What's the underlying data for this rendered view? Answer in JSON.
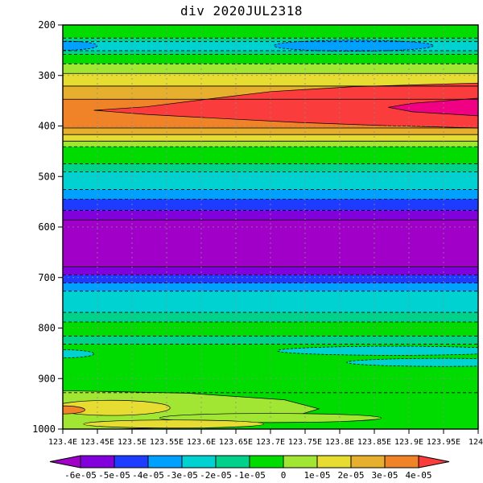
{
  "palette": {
    "purple": "#a000c8",
    "violet": "#8200dc",
    "darkblue": "#1e3cff",
    "blue": "#00a0ff",
    "cyan": "#00d2d2",
    "aqua": "#00d28c",
    "green": "#00dc00",
    "ygreen": "#a0e632",
    "yellow": "#e6dc32",
    "dyellow": "#e6af2d",
    "orange": "#f08228",
    "red": "#fa3c3c",
    "magenta": "#f00082"
  },
  "chart_data": {
    "type": "heatmap",
    "title": "div 2020JUL2318",
    "x_axis": {
      "range": [
        123.4,
        124.0
      ],
      "tick_labels": [
        "123.4E",
        "123.45E",
        "123.5E",
        "123.55E",
        "123.6E",
        "123.65E",
        "123.7E",
        "123.75E",
        "123.8E",
        "123.85E",
        "123.9E",
        "123.95E",
        "124E"
      ]
    },
    "y_axis": {
      "range": [
        200,
        1000
      ],
      "inverted": true,
      "tick_labels": [
        "200",
        "300",
        "400",
        "500",
        "600",
        "700",
        "800",
        "900",
        "1000"
      ]
    },
    "colorbar": {
      "labels": [
        "-6e-05",
        "-5e-05",
        "-4e-05",
        "-3e-05",
        "-2e-05",
        "-1e-05",
        "0",
        "1e-05",
        "2e-05",
        "3e-05",
        "4e-05"
      ],
      "colors": [
        "purple",
        "violet",
        "darkblue",
        "blue",
        "cyan",
        "aqua",
        "green",
        "ygreen",
        "yellow",
        "dyellow",
        "orange",
        "red"
      ]
    },
    "bands": [
      {
        "p0": 200,
        "p1": 226,
        "color": "green"
      },
      {
        "p0": 226,
        "p1": 233,
        "color": "aqua"
      },
      {
        "p0": 233,
        "p1": 251,
        "color": "cyan"
      },
      {
        "p0": 251,
        "p1": 258,
        "color": "aqua"
      },
      {
        "p0": 258,
        "p1": 277,
        "color": "green"
      },
      {
        "p0": 277,
        "p1": 296,
        "color": "ygreen"
      },
      {
        "p0": 296,
        "p1": 321,
        "color": "yellow"
      },
      {
        "p0": 321,
        "p1": 347,
        "color": "dyellow"
      },
      {
        "p0": 347,
        "p1": 404,
        "color": "orange"
      },
      {
        "p0": 404,
        "p1": 417,
        "color": "dyellow"
      },
      {
        "p0": 417,
        "p1": 430,
        "color": "yellow"
      },
      {
        "p0": 430,
        "p1": 441,
        "color": "ygreen"
      },
      {
        "p0": 441,
        "p1": 475,
        "color": "green"
      },
      {
        "p0": 475,
        "p1": 491,
        "color": "aqua"
      },
      {
        "p0": 491,
        "p1": 526,
        "color": "cyan"
      },
      {
        "p0": 526,
        "p1": 545,
        "color": "blue"
      },
      {
        "p0": 545,
        "p1": 567,
        "color": "darkblue"
      },
      {
        "p0": 567,
        "p1": 586,
        "color": "violet"
      },
      {
        "p0": 586,
        "p1": 679,
        "color": "purple"
      },
      {
        "p0": 679,
        "p1": 695,
        "color": "violet"
      },
      {
        "p0": 695,
        "p1": 711,
        "color": "darkblue"
      },
      {
        "p0": 711,
        "p1": 727,
        "color": "blue"
      },
      {
        "p0": 727,
        "p1": 769,
        "color": "cyan"
      },
      {
        "p0": 769,
        "p1": 788,
        "color": "aqua"
      },
      {
        "p0": 788,
        "p1": 816,
        "color": "green"
      },
      {
        "p0": 816,
        "p1": 832,
        "color": "aqua"
      },
      {
        "p0": 832,
        "p1": 1000,
        "color": "green"
      }
    ],
    "patches": [
      {
        "shape": "ellipse",
        "lon": 123.82,
        "p": 241,
        "rlon": 0.115,
        "rp": 11,
        "color": "blue"
      },
      {
        "shape": "ellipse",
        "lon": 123.4,
        "p": 241,
        "rlon": 0.05,
        "rp": 9,
        "color": "blue"
      },
      {
        "shape": "polygon",
        "color": "red",
        "points": [
          [
            124.0,
            315
          ],
          [
            123.82,
            322
          ],
          [
            123.7,
            332
          ],
          [
            123.62,
            345
          ],
          [
            123.52,
            362
          ],
          [
            123.445,
            369
          ],
          [
            123.52,
            377
          ],
          [
            123.64,
            386
          ],
          [
            123.74,
            393
          ],
          [
            123.86,
            399
          ],
          [
            124.0,
            404
          ]
        ]
      },
      {
        "shape": "polygon",
        "color": "magenta",
        "points": [
          [
            124.0,
            345
          ],
          [
            123.905,
            355
          ],
          [
            123.87,
            363
          ],
          [
            123.905,
            372
          ],
          [
            124.0,
            380
          ]
        ]
      },
      {
        "shape": "ellipse",
        "lon": 123.88,
        "p": 845,
        "rlon": 0.17,
        "rp": 9,
        "color": "cyan"
      },
      {
        "shape": "ellipse",
        "lon": 123.95,
        "p": 868,
        "rlon": 0.14,
        "rp": 8,
        "color": "cyan"
      },
      {
        "shape": "ellipse",
        "lon": 123.4,
        "p": 851,
        "rlon": 0.045,
        "rp": 8,
        "color": "cyan"
      },
      {
        "shape": "polygon",
        "color": "ygreen",
        "points": [
          [
            123.4,
            924
          ],
          [
            123.58,
            929
          ],
          [
            123.72,
            942
          ],
          [
            123.77,
            960
          ],
          [
            123.72,
            980
          ],
          [
            123.6,
            995
          ],
          [
            123.48,
            1000
          ],
          [
            123.4,
            1000
          ]
        ]
      },
      {
        "shape": "ellipse",
        "lon": 123.7,
        "p": 978,
        "rlon": 0.16,
        "rp": 9,
        "color": "ygreen"
      },
      {
        "shape": "ellipse",
        "lon": 123.47,
        "p": 958,
        "rlon": 0.085,
        "rp": 15,
        "color": "yellow"
      },
      {
        "shape": "ellipse",
        "lon": 123.56,
        "p": 990,
        "rlon": 0.13,
        "rp": 8,
        "color": "yellow"
      },
      {
        "shape": "ellipse",
        "lon": 123.4,
        "p": 962,
        "rlon": 0.032,
        "rp": 8,
        "color": "orange"
      }
    ],
    "contour_lines": [
      {
        "p": 226,
        "style": "dashed"
      },
      {
        "p": 233,
        "style": "dashed"
      },
      {
        "p": 251,
        "style": "dashed"
      },
      {
        "p": 258,
        "style": "dashed"
      },
      {
        "p": 277,
        "style": "dashed"
      },
      {
        "p": 296,
        "style": "solid"
      },
      {
        "p": 321,
        "style": "solid"
      },
      {
        "p": 347,
        "style": "solid"
      },
      {
        "p": 404,
        "style": "solid"
      },
      {
        "p": 417,
        "style": "solid"
      },
      {
        "p": 430,
        "style": "solid"
      },
      {
        "p": 441,
        "style": "dashed"
      },
      {
        "p": 475,
        "style": "dashed"
      },
      {
        "p": 491,
        "style": "dashed"
      },
      {
        "p": 526,
        "style": "dashed"
      },
      {
        "p": 545,
        "style": "dashed"
      },
      {
        "p": 567,
        "style": "dashed"
      },
      {
        "p": 586,
        "style": "solid"
      },
      {
        "p": 679,
        "style": "solid"
      },
      {
        "p": 695,
        "style": "dashed"
      },
      {
        "p": 711,
        "style": "dashed"
      },
      {
        "p": 727,
        "style": "dashed"
      },
      {
        "p": 769,
        "style": "dashed"
      },
      {
        "p": 788,
        "style": "dashed"
      },
      {
        "p": 816,
        "style": "dashed"
      },
      {
        "p": 832,
        "style": "dashed"
      },
      {
        "p": 928,
        "style": "dashed"
      }
    ]
  }
}
